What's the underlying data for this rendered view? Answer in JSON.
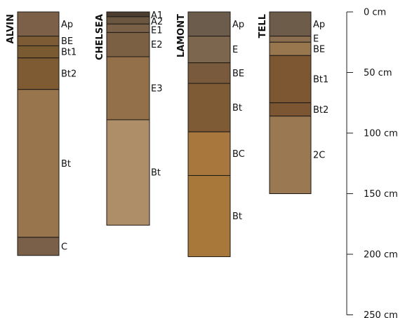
{
  "scale": {
    "unit": "cm",
    "max_depth": 250,
    "ticks": [
      {
        "value": 0,
        "label": "0 cm"
      },
      {
        "value": 50,
        "label": "50 cm"
      },
      {
        "value": 100,
        "label": "100 cm"
      },
      {
        "value": 150,
        "label": "150 cm"
      },
      {
        "value": 200,
        "label": "200 cm"
      },
      {
        "value": 250,
        "label": "250 cm"
      }
    ]
  },
  "profiles": [
    {
      "name": "ALVIN",
      "horizons": [
        {
          "label": "Ap",
          "top": 0,
          "bottom": 20,
          "color": "#7c6148"
        },
        {
          "label": "BE",
          "top": 20,
          "bottom": 28,
          "color": "#7d5c35"
        },
        {
          "label": "Bt1",
          "top": 28,
          "bottom": 38,
          "color": "#7a5a30"
        },
        {
          "label": "Bt2",
          "top": 38,
          "bottom": 64,
          "color": "#7e5b33"
        },
        {
          "label": "Bt",
          "top": 64,
          "bottom": 186,
          "color": "#98754c"
        },
        {
          "label": "C",
          "top": 186,
          "bottom": 201,
          "color": "#7a6049"
        }
      ]
    },
    {
      "name": "CHELSEA",
      "horizons": [
        {
          "label": "A1",
          "top": 0,
          "bottom": 4,
          "color": "#4b3d2f"
        },
        {
          "label": "A2",
          "top": 4,
          "bottom": 10,
          "color": "#6b5640"
        },
        {
          "label": "E1",
          "top": 10,
          "bottom": 17,
          "color": "#7a6047"
        },
        {
          "label": "E2",
          "top": 17,
          "bottom": 37,
          "color": "#7c6044"
        },
        {
          "label": "E3",
          "top": 37,
          "bottom": 89,
          "color": "#936f4a"
        },
        {
          "label": "Bt",
          "top": 89,
          "bottom": 176,
          "color": "#ae8e68"
        }
      ]
    },
    {
      "name": "LAMONT",
      "horizons": [
        {
          "label": "Ap",
          "top": 0,
          "bottom": 20,
          "color": "#6c5c4c"
        },
        {
          "label": "E",
          "top": 20,
          "bottom": 42,
          "color": "#7d664e"
        },
        {
          "label": "BE",
          "top": 42,
          "bottom": 59,
          "color": "#7a5a3c"
        },
        {
          "label": "Bt",
          "top": 59,
          "bottom": 99,
          "color": "#7e5a35"
        },
        {
          "label": "BC",
          "top": 99,
          "bottom": 135,
          "color": "#a7773e"
        },
        {
          "label": "Bt",
          "top": 135,
          "bottom": 202,
          "color": "#a8773a"
        }
      ]
    },
    {
      "name": "TELL",
      "horizons": [
        {
          "label": "Ap",
          "top": 0,
          "bottom": 20,
          "color": "#6e5c4b"
        },
        {
          "label": "E",
          "top": 20,
          "bottom": 25,
          "color": "#8b6d50"
        },
        {
          "label": "BE",
          "top": 25,
          "bottom": 36,
          "color": "#99774e"
        },
        {
          "label": "Bt1",
          "top": 36,
          "bottom": 75,
          "color": "#7c5731"
        },
        {
          "label": "Bt2",
          "top": 75,
          "bottom": 86,
          "color": "#7c5533"
        },
        {
          "label": "2C",
          "top": 86,
          "bottom": 150,
          "color": "#9a7851"
        }
      ]
    }
  ]
}
